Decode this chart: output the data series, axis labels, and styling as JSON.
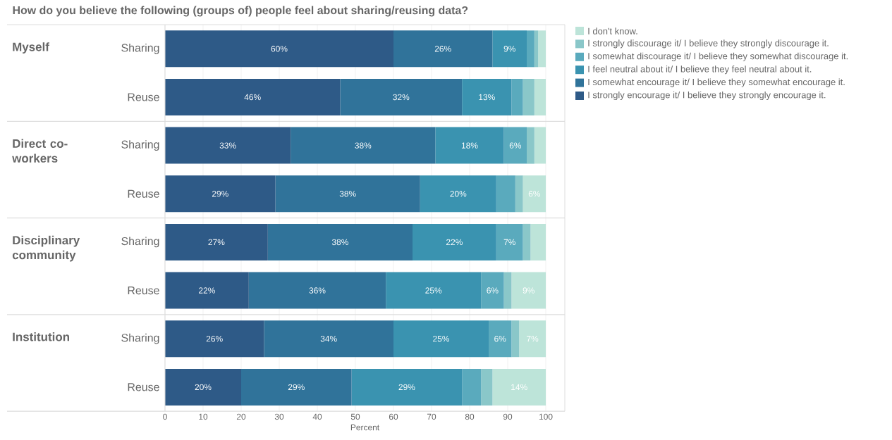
{
  "chart_data": [
    {
      "type": "bar",
      "title": "How do you believe the following (groups of) people feel about sharing/reusing data?",
      "ylabel": "Myself",
      "orientation": "horizontal",
      "stacked": true,
      "categories": [
        "Sharing",
        "Reuse"
      ],
      "xlim": [
        0,
        105
      ],
      "xticks": [
        0,
        10,
        20,
        30,
        40,
        50,
        60,
        70,
        80,
        90,
        100
      ],
      "grid": "x",
      "tick_labels": "y",
      "legend": "right",
      "series": [
        {
          "name": "I strongly encourage it/ I believe they strongly encourage it.",
          "color": "#2e5a87",
          "values": [
            60,
            46
          ],
          "value_labels": [
            "60%",
            "46%"
          ]
        },
        {
          "name": "I somewhat encourage it/ I believe they somewhat encourage it.",
          "color": "#30739a",
          "values": [
            26,
            32
          ],
          "value_labels": [
            "26%",
            "32%"
          ]
        },
        {
          "name": "I feel neutral about it/ I believe they feel neutral about it.",
          "color": "#3a93b0",
          "values": [
            9,
            13
          ],
          "value_labels": [
            "9%",
            "13%"
          ]
        },
        {
          "name": "I somewhat discourage it/ I believe they somewhat discourage it.",
          "color": "#5aaabd",
          "values": [
            2,
            3
          ],
          "value_labels": [
            null,
            null
          ]
        },
        {
          "name": "I strongly discourage it/ I believe they strongly discourage it.",
          "color": "#8ac7c9",
          "values": [
            1,
            3
          ],
          "value_labels": [
            null,
            null
          ]
        },
        {
          "name": "I don't know.",
          "color": "#bde4d9",
          "values": [
            2,
            3
          ],
          "value_labels": [
            null,
            null
          ]
        }
      ]
    },
    {
      "type": "bar",
      "ylabel": "Direct co-workers",
      "orientation": "horizontal",
      "stacked": true,
      "categories": [
        "Sharing",
        "Reuse"
      ],
      "xlim": [
        0,
        105
      ],
      "xticks": [
        0,
        10,
        20,
        30,
        40,
        50,
        60,
        70,
        80,
        90,
        100
      ],
      "grid": "x",
      "tick_labels": "y",
      "series": [
        {
          "color": "#2e5a87",
          "values": [
            33,
            29
          ],
          "value_labels": [
            "33%",
            "29%"
          ]
        },
        {
          "color": "#30739a",
          "values": [
            38,
            38
          ],
          "value_labels": [
            "38%",
            "38%"
          ]
        },
        {
          "color": "#3a93b0",
          "values": [
            18,
            20
          ],
          "value_labels": [
            "18%",
            "20%"
          ]
        },
        {
          "color": "#5aaabd",
          "values": [
            6,
            5
          ],
          "value_labels": [
            "6%",
            null
          ]
        },
        {
          "color": "#8ac7c9",
          "values": [
            2,
            2
          ],
          "value_labels": [
            null,
            null
          ]
        },
        {
          "color": "#bde4d9",
          "values": [
            3,
            6
          ],
          "value_labels": [
            null,
            "6%"
          ]
        }
      ]
    },
    {
      "type": "bar",
      "ylabel": "Disciplinary community",
      "orientation": "horizontal",
      "stacked": true,
      "categories": [
        "Sharing",
        "Reuse"
      ],
      "xlim": [
        0,
        105
      ],
      "xticks": [
        0,
        10,
        20,
        30,
        40,
        50,
        60,
        70,
        80,
        90,
        100
      ],
      "grid": "x",
      "tick_labels": "y",
      "series": [
        {
          "color": "#2e5a87",
          "values": [
            27,
            22
          ],
          "value_labels": [
            "27%",
            "22%"
          ]
        },
        {
          "color": "#30739a",
          "values": [
            38,
            36
          ],
          "value_labels": [
            "38%",
            "36%"
          ]
        },
        {
          "color": "#3a93b0",
          "values": [
            22,
            25
          ],
          "value_labels": [
            "22%",
            "25%"
          ]
        },
        {
          "color": "#5aaabd",
          "values": [
            7,
            6
          ],
          "value_labels": [
            "7%",
            "6%"
          ]
        },
        {
          "color": "#8ac7c9",
          "values": [
            2,
            2
          ],
          "value_labels": [
            null,
            null
          ]
        },
        {
          "color": "#bde4d9",
          "values": [
            4,
            9
          ],
          "value_labels": [
            null,
            "9%"
          ]
        }
      ]
    },
    {
      "type": "bar",
      "ylabel": "Institution",
      "xlabel": "Percent",
      "orientation": "horizontal",
      "stacked": true,
      "categories": [
        "Sharing",
        "Reuse"
      ],
      "xlim": [
        0,
        105
      ],
      "xticks": [
        0,
        10,
        20,
        30,
        40,
        50,
        60,
        70,
        80,
        90,
        100
      ],
      "grid": "x",
      "series": [
        {
          "color": "#2e5a87",
          "values": [
            26,
            20
          ],
          "value_labels": [
            "26%",
            "20%"
          ]
        },
        {
          "color": "#30739a",
          "values": [
            34,
            29
          ],
          "value_labels": [
            "34%",
            "29%"
          ]
        },
        {
          "color": "#3a93b0",
          "values": [
            25,
            29
          ],
          "value_labels": [
            "25%",
            "29%"
          ]
        },
        {
          "color": "#5aaabd",
          "values": [
            6,
            5
          ],
          "value_labels": [
            "6%",
            null
          ]
        },
        {
          "color": "#8ac7c9",
          "values": [
            2,
            3
          ],
          "value_labels": [
            null,
            null
          ]
        },
        {
          "color": "#bde4d9",
          "values": [
            7,
            14
          ],
          "value_labels": [
            "7%",
            "14%"
          ]
        }
      ]
    }
  ]
}
